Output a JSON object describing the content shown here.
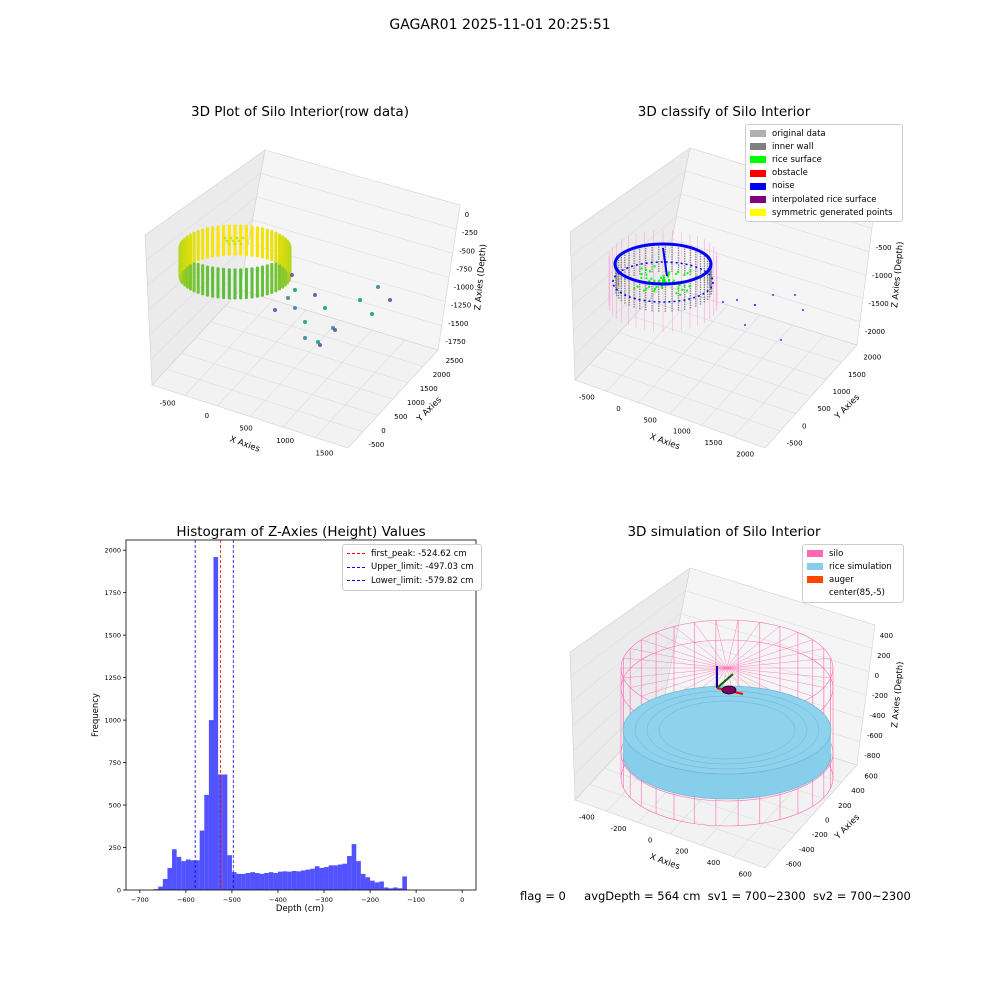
{
  "suptitle": "GAGAR01 2025-11-01 20:25:51",
  "panels": {
    "raw": {
      "title": "3D Plot of Silo Interior(row data)",
      "xlabel": "X Axies",
      "ylabel": "Y Axies",
      "zlabel": "Z Axies (Depth)",
      "xticks": [
        "-500",
        "0",
        "500",
        "1000",
        "1500"
      ],
      "yticks": [
        "-500",
        "0",
        "500",
        "1000",
        "1500",
        "2000",
        "2500"
      ],
      "zticks": [
        "0",
        "-250",
        "-500",
        "-750",
        "-1000",
        "-1250",
        "-1500",
        "-1750"
      ]
    },
    "classify": {
      "title": "3D classify of Silo Interior",
      "xlabel": "X Axies",
      "ylabel": "Y Axies",
      "zlabel": "Z Axies (Depth)",
      "xticks": [
        "-500",
        "0",
        "500",
        "1000",
        "1500",
        "2000"
      ],
      "yticks": [
        "-500",
        "0",
        "500",
        "1000",
        "1500",
        "2000"
      ],
      "zticks": [
        "0",
        "-500",
        "-1000",
        "-1500",
        "-2000"
      ],
      "legend": [
        {
          "label": "original data",
          "color": "#b0b0b0"
        },
        {
          "label": "inner wall",
          "color": "#808080"
        },
        {
          "label": "rice surface",
          "color": "#00ff00"
        },
        {
          "label": "obstacle",
          "color": "#ff0000"
        },
        {
          "label": "noise",
          "color": "#0000ff"
        },
        {
          "label": "interpolated rice surface",
          "color": "#800080"
        },
        {
          "label": "symmetric generated points",
          "color": "#ffff00"
        }
      ]
    },
    "simulation": {
      "title": "3D simulation of Silo Interior",
      "xlabel": "X Axies",
      "ylabel": "Y Axies",
      "zlabel": "Z Axies (Depth)",
      "xticks": [
        "-400",
        "-200",
        "0",
        "200",
        "400",
        "600"
      ],
      "yticks": [
        "-600",
        "-400",
        "-200",
        "0",
        "200",
        "400",
        "600"
      ],
      "zticks": [
        "400",
        "200",
        "0",
        "-200",
        "-400",
        "-600",
        "-800"
      ],
      "legend": [
        {
          "label": "silo",
          "color": "#ff69b4"
        },
        {
          "label": "rice simulation",
          "color": "#87ceeb"
        },
        {
          "label": "auger",
          "color": "#ff4500"
        },
        {
          "label": "center(85,-5)",
          "color": ""
        }
      ]
    }
  },
  "chart_data": {
    "type": "bar",
    "title": "Histogram of Z-Axies (Height) Values",
    "xlabel": "Depth (cm)",
    "ylabel": "Frequency",
    "xlim": [
      -730,
      30
    ],
    "ylim": [
      0,
      2060
    ],
    "xticks": [
      -700,
      -600,
      -500,
      -400,
      -300,
      -200,
      -100,
      0
    ],
    "yticks": [
      0,
      250,
      500,
      750,
      1000,
      1250,
      1500,
      1750,
      2000
    ],
    "bar_color": "#0000ff",
    "bins": [
      [
        -670,
        -660,
        5
      ],
      [
        -660,
        -650,
        20
      ],
      [
        -650,
        -640,
        65
      ],
      [
        -640,
        -630,
        130
      ],
      [
        -630,
        -620,
        240
      ],
      [
        -620,
        -610,
        195
      ],
      [
        -610,
        -600,
        170
      ],
      [
        -600,
        -590,
        180
      ],
      [
        -590,
        -580,
        175
      ],
      [
        -580,
        -570,
        175
      ],
      [
        -570,
        -560,
        350
      ],
      [
        -560,
        -550,
        560
      ],
      [
        -550,
        -540,
        1000
      ],
      [
        -540,
        -530,
        1960
      ],
      [
        -530,
        -520,
        680
      ],
      [
        -520,
        -510,
        680
      ],
      [
        -510,
        -500,
        205
      ],
      [
        -500,
        -490,
        105
      ],
      [
        -490,
        -480,
        95
      ],
      [
        -480,
        -470,
        95
      ],
      [
        -470,
        -460,
        100
      ],
      [
        -460,
        -450,
        105
      ],
      [
        -450,
        -440,
        100
      ],
      [
        -440,
        -430,
        95
      ],
      [
        -430,
        -420,
        100
      ],
      [
        -420,
        -410,
        105
      ],
      [
        -410,
        -400,
        100
      ],
      [
        -400,
        -390,
        108
      ],
      [
        -390,
        -380,
        110
      ],
      [
        -380,
        -370,
        108
      ],
      [
        -370,
        -360,
        112
      ],
      [
        -360,
        -350,
        110
      ],
      [
        -350,
        -340,
        115
      ],
      [
        -340,
        -330,
        120
      ],
      [
        -330,
        -320,
        125
      ],
      [
        -320,
        -310,
        140
      ],
      [
        -310,
        -300,
        130
      ],
      [
        -300,
        -290,
        135
      ],
      [
        -290,
        -280,
        145
      ],
      [
        -280,
        -270,
        145
      ],
      [
        -270,
        -260,
        150
      ],
      [
        -260,
        -250,
        155
      ],
      [
        -250,
        -240,
        200
      ],
      [
        -240,
        -230,
        270
      ],
      [
        -230,
        -220,
        170
      ],
      [
        -220,
        -210,
        95
      ],
      [
        -210,
        -200,
        75
      ],
      [
        -200,
        -190,
        55
      ],
      [
        -190,
        -180,
        45
      ],
      [
        -180,
        -170,
        50
      ],
      [
        -170,
        -160,
        15
      ],
      [
        -160,
        -150,
        10
      ],
      [
        -150,
        -140,
        15
      ],
      [
        -140,
        -130,
        10
      ],
      [
        -130,
        -120,
        80
      ]
    ],
    "lines": [
      {
        "label": "first_peak: -524.62 cm",
        "x": -524.62,
        "color": "#ff0000"
      },
      {
        "label": "Upper_limit: -497.03 cm",
        "x": -497.03,
        "color": "#0000ff"
      },
      {
        "label": "Lower_limit: -579.82 cm",
        "x": -579.82,
        "color": "#0000ff"
      }
    ]
  },
  "footer": {
    "flag": "flag = 0",
    "avg": "avgDepth = 564 cm",
    "sv1": "sv1 = 700~2300",
    "sv2": "sv2 = 700~2300"
  }
}
